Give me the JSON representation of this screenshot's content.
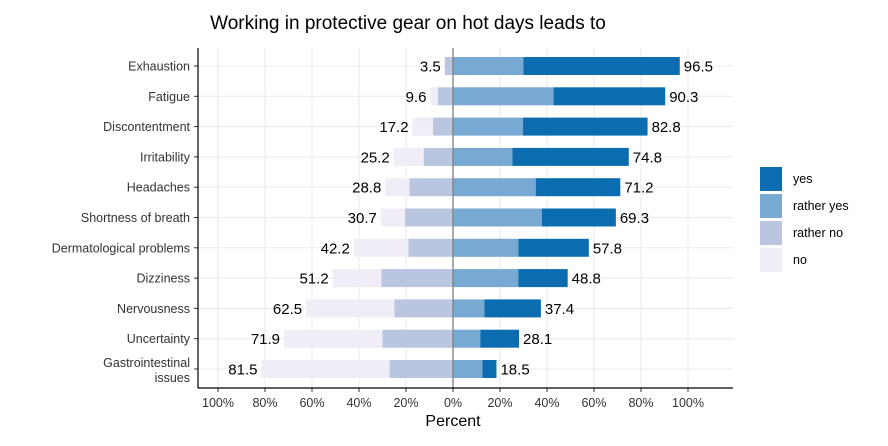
{
  "chart_data": {
    "type": "bar",
    "orientation": "horizontal",
    "stacked": "diverging",
    "title": "Working in protective gear on hot days leads to",
    "xlabel": "Percent",
    "ylabel": "",
    "xlim": [
      -100,
      100
    ],
    "xticks": [
      "100%",
      "80%",
      "60%",
      "40%",
      "20%",
      "0%",
      "20%",
      "40%",
      "60%",
      "80%",
      "100%"
    ],
    "grid": true,
    "legend_position": "right",
    "categories": [
      "Exhaustion",
      "Fatigue",
      "Discontentment",
      "Irritability",
      "Headaches",
      "Shortness of breath",
      "Dermatological problems",
      "Dizziness",
      "Nervousness",
      "Uncertainty",
      "Gastrointestinal issues"
    ],
    "series": [
      {
        "name": "yes",
        "color": "#0b6db0",
        "values": [
          66.5,
          47.5,
          53.0,
          49.5,
          36.0,
          31.5,
          30.0,
          21.0,
          24.0,
          16.5,
          6.0
        ]
      },
      {
        "name": "rather yes",
        "color": "#78a9d2",
        "values": [
          30.0,
          42.8,
          29.8,
          25.3,
          35.2,
          37.8,
          27.8,
          27.8,
          13.4,
          11.6,
          12.5
        ]
      },
      {
        "name": "rather no",
        "color": "#bac6e0",
        "values": [
          3.5,
          6.5,
          8.5,
          12.5,
          18.5,
          20.5,
          19.0,
          30.5,
          25.0,
          30.0,
          27.0
        ]
      },
      {
        "name": "no",
        "color": "#f0edf6",
        "values": [
          0.0,
          3.1,
          8.7,
          12.7,
          10.3,
          10.2,
          23.2,
          20.7,
          37.5,
          41.9,
          54.5
        ]
      }
    ],
    "totals_positive": [
      96.5,
      90.3,
      82.8,
      74.8,
      71.2,
      69.3,
      57.8,
      48.8,
      37.4,
      28.1,
      18.5
    ],
    "totals_negative": [
      3.5,
      9.6,
      17.2,
      25.2,
      28.8,
      30.7,
      42.2,
      51.2,
      62.5,
      71.9,
      81.5
    ]
  }
}
